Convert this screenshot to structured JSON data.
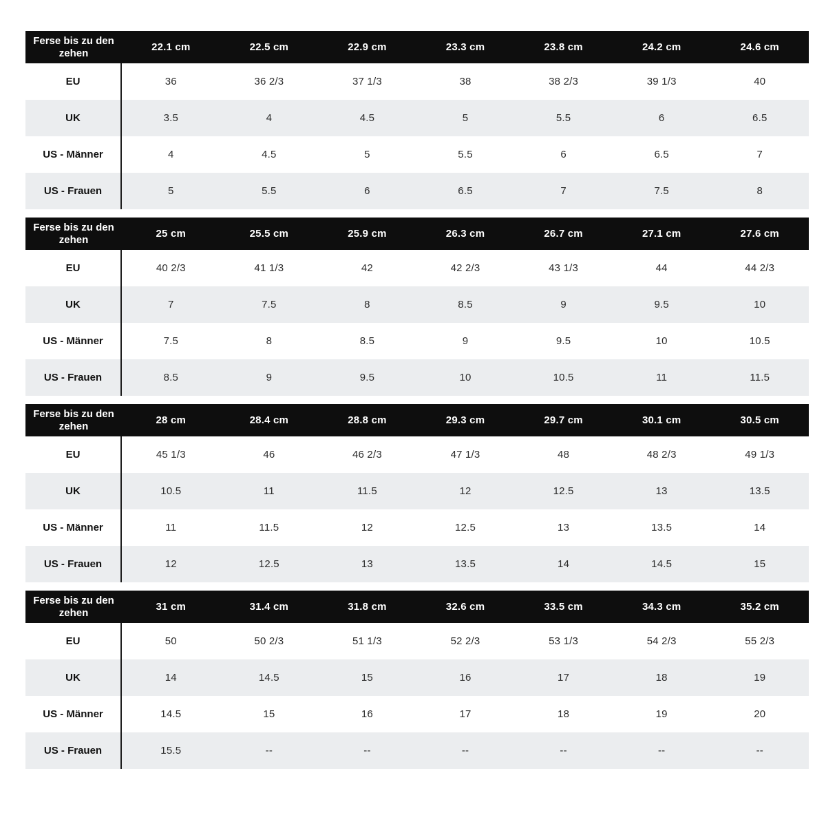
{
  "page": {
    "background": "#ffffff"
  },
  "colors": {
    "header_bg": "#0e0e0e",
    "header_text": "#ffffff",
    "row_bg": "#ffffff",
    "row_alt_bg": "#ebedef",
    "divider": "#1c1c1c",
    "cell_text": "#2b2b2b",
    "label_text": "#111111"
  },
  "labels": {
    "corner_label": "Ferse bis zu den zehen",
    "row_labels": [
      "EU",
      "UK",
      "US - Männer",
      "US - Frauen"
    ]
  },
  "chart_data": [
    {
      "type": "table",
      "corner_label": "Ferse bis zu den zehen",
      "columns": [
        "22.1 cm",
        "22.5 cm",
        "22.9 cm",
        "23.3 cm",
        "23.8 cm",
        "24.2 cm",
        "24.6 cm"
      ],
      "rows": [
        {
          "label": "EU",
          "values": [
            "36",
            "36 2/3",
            "37 1/3",
            "38",
            "38 2/3",
            "39 1/3",
            "40"
          ]
        },
        {
          "label": "UK",
          "values": [
            "3.5",
            "4",
            "4.5",
            "5",
            "5.5",
            "6",
            "6.5"
          ]
        },
        {
          "label": "US - Männer",
          "values": [
            "4",
            "4.5",
            "5",
            "5.5",
            "6",
            "6.5",
            "7"
          ]
        },
        {
          "label": "US - Frauen",
          "values": [
            "5",
            "5.5",
            "6",
            "6.5",
            "7",
            "7.5",
            "8"
          ]
        }
      ]
    },
    {
      "type": "table",
      "corner_label": "Ferse bis zu den zehen",
      "columns": [
        "25 cm",
        "25.5 cm",
        "25.9 cm",
        "26.3 cm",
        "26.7 cm",
        "27.1 cm",
        "27.6 cm"
      ],
      "rows": [
        {
          "label": "EU",
          "values": [
            "40 2/3",
            "41 1/3",
            "42",
            "42 2/3",
            "43 1/3",
            "44",
            "44 2/3"
          ]
        },
        {
          "label": "UK",
          "values": [
            "7",
            "7.5",
            "8",
            "8.5",
            "9",
            "9.5",
            "10"
          ]
        },
        {
          "label": "US - Männer",
          "values": [
            "7.5",
            "8",
            "8.5",
            "9",
            "9.5",
            "10",
            "10.5"
          ]
        },
        {
          "label": "US - Frauen",
          "values": [
            "8.5",
            "9",
            "9.5",
            "10",
            "10.5",
            "11",
            "11.5"
          ]
        }
      ]
    },
    {
      "type": "table",
      "corner_label": "Ferse bis zu den zehen",
      "columns": [
        "28 cm",
        "28.4 cm",
        "28.8 cm",
        "29.3 cm",
        "29.7 cm",
        "30.1 cm",
        "30.5 cm"
      ],
      "rows": [
        {
          "label": "EU",
          "values": [
            "45 1/3",
            "46",
            "46 2/3",
            "47 1/3",
            "48",
            "48 2/3",
            "49 1/3"
          ]
        },
        {
          "label": "UK",
          "values": [
            "10.5",
            "11",
            "11.5",
            "12",
            "12.5",
            "13",
            "13.5"
          ]
        },
        {
          "label": "US - Männer",
          "values": [
            "11",
            "11.5",
            "12",
            "12.5",
            "13",
            "13.5",
            "14"
          ]
        },
        {
          "label": "US - Frauen",
          "values": [
            "12",
            "12.5",
            "13",
            "13.5",
            "14",
            "14.5",
            "15"
          ]
        }
      ]
    },
    {
      "type": "table",
      "corner_label": "Ferse bis zu den zehen",
      "columns": [
        "31 cm",
        "31.4 cm",
        "31.8 cm",
        "32.6 cm",
        "33.5 cm",
        "34.3 cm",
        "35.2 cm"
      ],
      "rows": [
        {
          "label": "EU",
          "values": [
            "50",
            "50 2/3",
            "51 1/3",
            "52 2/3",
            "53 1/3",
            "54 2/3",
            "55 2/3"
          ]
        },
        {
          "label": "UK",
          "values": [
            "14",
            "14.5",
            "15",
            "16",
            "17",
            "18",
            "19"
          ]
        },
        {
          "label": "US - Männer",
          "values": [
            "14.5",
            "15",
            "16",
            "17",
            "18",
            "19",
            "20"
          ]
        },
        {
          "label": "US - Frauen",
          "values": [
            "15.5",
            "--",
            "--",
            "--",
            "--",
            "--",
            "--"
          ]
        }
      ]
    }
  ]
}
